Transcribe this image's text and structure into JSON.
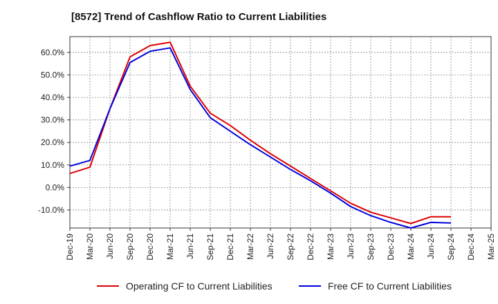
{
  "chart_data": {
    "type": "line",
    "title": "[8572]  Trend of Cashflow Ratio to Current Liabilities",
    "xlabel": "",
    "ylabel": "",
    "x_ticks": [
      "Dec-19",
      "Mar-20",
      "Jun-20",
      "Sep-20",
      "Dec-20",
      "Mar-21",
      "Jun-21",
      "Sep-21",
      "Dec-21",
      "Mar-22",
      "Jun-22",
      "Sep-22",
      "Dec-22",
      "Mar-23",
      "Jun-23",
      "Sep-23",
      "Dec-23",
      "Mar-24",
      "Jun-24",
      "Sep-24",
      "Dec-24",
      "Mar-25"
    ],
    "y_ticks": [
      "-10.0%",
      "0.0%",
      "10.0%",
      "20.0%",
      "30.0%",
      "40.0%",
      "50.0%",
      "60.0%"
    ],
    "ylim": [
      -18,
      67
    ],
    "grid": true,
    "legend_position": "bottom",
    "series": [
      {
        "name": "Operating CF to Current Liabilities",
        "color": "#dd0000",
        "x": [
          "Dec-19",
          "Mar-20",
          "Jun-20",
          "Sep-20",
          "Dec-20",
          "Mar-21",
          "Jun-21",
          "Sep-21",
          "Dec-21",
          "Mar-22",
          "Jun-22",
          "Sep-22",
          "Dec-22",
          "Mar-23",
          "Jun-23",
          "Sep-23",
          "Dec-23",
          "Mar-24",
          "Jun-24",
          "Sep-24"
        ],
        "values": [
          6.2,
          9.0,
          35.0,
          58.0,
          63.0,
          64.5,
          45.0,
          33.0,
          27.5,
          21.0,
          15.0,
          9.5,
          4.0,
          -1.5,
          -7.0,
          -11.0,
          -13.5,
          -16.0,
          -13.0,
          -13.0
        ]
      },
      {
        "name": "Free CF to Current Liabilities",
        "color": "#0000dd",
        "x": [
          "Dec-19",
          "Mar-20",
          "Jun-20",
          "Sep-20",
          "Dec-20",
          "Mar-21",
          "Jun-21",
          "Sep-21",
          "Dec-21",
          "Mar-22",
          "Jun-22",
          "Sep-22",
          "Dec-22",
          "Mar-23",
          "Jun-23",
          "Sep-23",
          "Dec-23",
          "Mar-24",
          "Jun-24",
          "Sep-24"
        ],
        "values": [
          9.5,
          12.0,
          35.0,
          55.5,
          60.5,
          62.0,
          43.5,
          31.0,
          25.0,
          19.0,
          13.5,
          8.0,
          3.0,
          -2.5,
          -8.5,
          -12.5,
          -15.5,
          -18.0,
          -15.5,
          -15.8
        ]
      }
    ]
  }
}
